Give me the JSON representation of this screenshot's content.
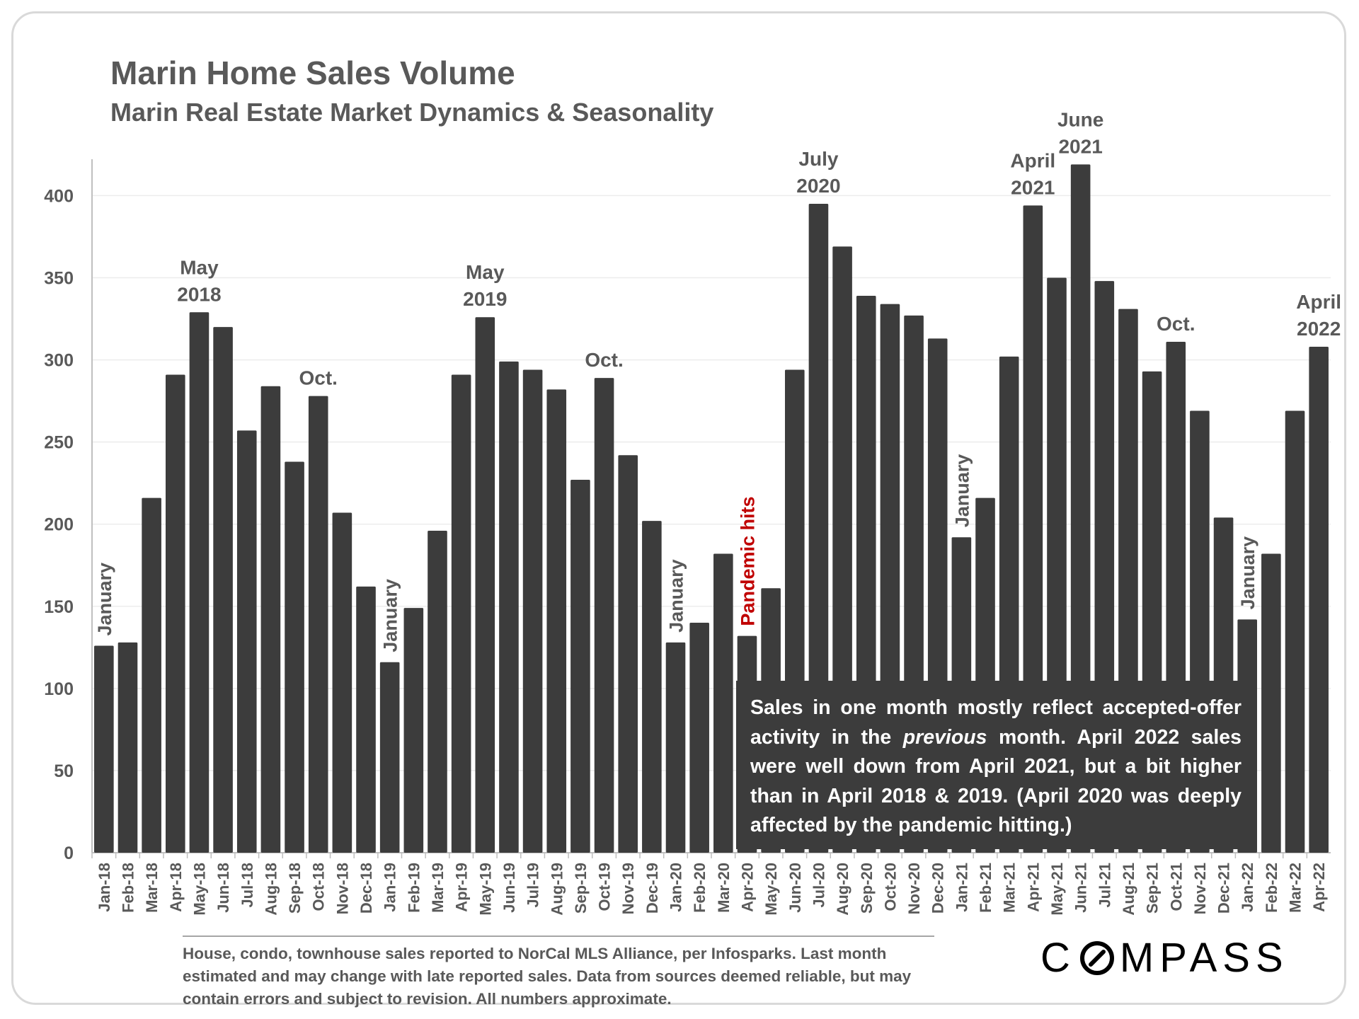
{
  "title": "Marin Home Sales Volume",
  "subtitle": "Marin Real Estate Market Dynamics & Seasonality",
  "colors": {
    "bar": "#3c3c3c",
    "axis": "#595959",
    "highlight": "#c00000",
    "grid": "#ececec"
  },
  "callout": {
    "part1": "Sales in one month mostly reflect accepted-offer activity in the ",
    "emph": "previous",
    "part2": " month. April 2022 sales were well down from April 2021, but a bit higher than in April 2018 & 2019. (April 2020 was deeply affected by the pandemic hitting.)"
  },
  "footnote": "House, condo, townhouse sales reported to NorCal MLS Alliance, per Infosparks. Last month estimated and may change with late reported sales. Data from sources deemed reliable, but may contain errors and subject to revision. All numbers approximate.",
  "logo": {
    "left": "C",
    "right": "MPASS"
  },
  "chart_data": {
    "type": "bar",
    "title": "Marin Home Sales Volume",
    "xlabel": "",
    "ylabel": "",
    "ylim": [
      0,
      420
    ],
    "yticks": [
      0,
      50,
      100,
      150,
      200,
      250,
      300,
      350,
      400
    ],
    "grid": true,
    "categories": [
      "Jan-18",
      "Feb-18",
      "Mar-18",
      "Apr-18",
      "May-18",
      "Jun-18",
      "Jul-18",
      "Aug-18",
      "Sep-18",
      "Oct-18",
      "Nov-18",
      "Dec-18",
      "Jan-19",
      "Feb-19",
      "Mar-19",
      "Apr-19",
      "May-19",
      "Jun-19",
      "Jul-19",
      "Aug-19",
      "Sep-19",
      "Oct-19",
      "Nov-19",
      "Dec-19",
      "Jan-20",
      "Feb-20",
      "Mar-20",
      "Apr-20",
      "May-20",
      "Jun-20",
      "Jul-20",
      "Aug-20",
      "Sep-20",
      "Oct-20",
      "Nov-20",
      "Dec-20",
      "Jan-21",
      "Feb-21",
      "Mar-21",
      "Apr-21",
      "May-21",
      "Jun-21",
      "Jul-21",
      "Aug-21",
      "Sep-21",
      "Oct-21",
      "Nov-21",
      "Dec-21",
      "Jan-22",
      "Feb-22",
      "Mar-22",
      "Apr-22"
    ],
    "values": [
      126,
      128,
      216,
      291,
      329,
      320,
      257,
      284,
      238,
      278,
      207,
      162,
      116,
      149,
      196,
      291,
      326,
      299,
      294,
      282,
      227,
      289,
      242,
      202,
      128,
      140,
      182,
      132,
      161,
      294,
      395,
      369,
      339,
      334,
      327,
      313,
      192,
      216,
      302,
      394,
      350,
      419,
      348,
      331,
      293,
      311,
      269,
      204,
      142,
      182,
      269,
      308
    ],
    "annotations": [
      {
        "index": 0,
        "lines": [
          "January"
        ],
        "rotated": true
      },
      {
        "index": 4,
        "lines": [
          "May",
          "2018"
        ]
      },
      {
        "index": 9,
        "lines": [
          "Oct."
        ]
      },
      {
        "index": 12,
        "lines": [
          "January"
        ],
        "rotated": true
      },
      {
        "index": 16,
        "lines": [
          "May",
          "2019"
        ]
      },
      {
        "index": 21,
        "lines": [
          "Oct."
        ]
      },
      {
        "index": 24,
        "lines": [
          "January"
        ],
        "rotated": true
      },
      {
        "index": 27,
        "lines": [
          "Pandemic hits"
        ],
        "rotated": true,
        "highlight": true
      },
      {
        "index": 30,
        "lines": [
          "July",
          "2020"
        ]
      },
      {
        "index": 36,
        "lines": [
          "January"
        ],
        "rotated": true
      },
      {
        "index": 39,
        "lines": [
          "April",
          "2021"
        ]
      },
      {
        "index": 41,
        "lines": [
          "June",
          "2021"
        ]
      },
      {
        "index": 45,
        "lines": [
          "Oct."
        ]
      },
      {
        "index": 48,
        "lines": [
          "January"
        ],
        "rotated": true
      },
      {
        "index": 51,
        "lines": [
          "April",
          "2022"
        ]
      }
    ]
  }
}
